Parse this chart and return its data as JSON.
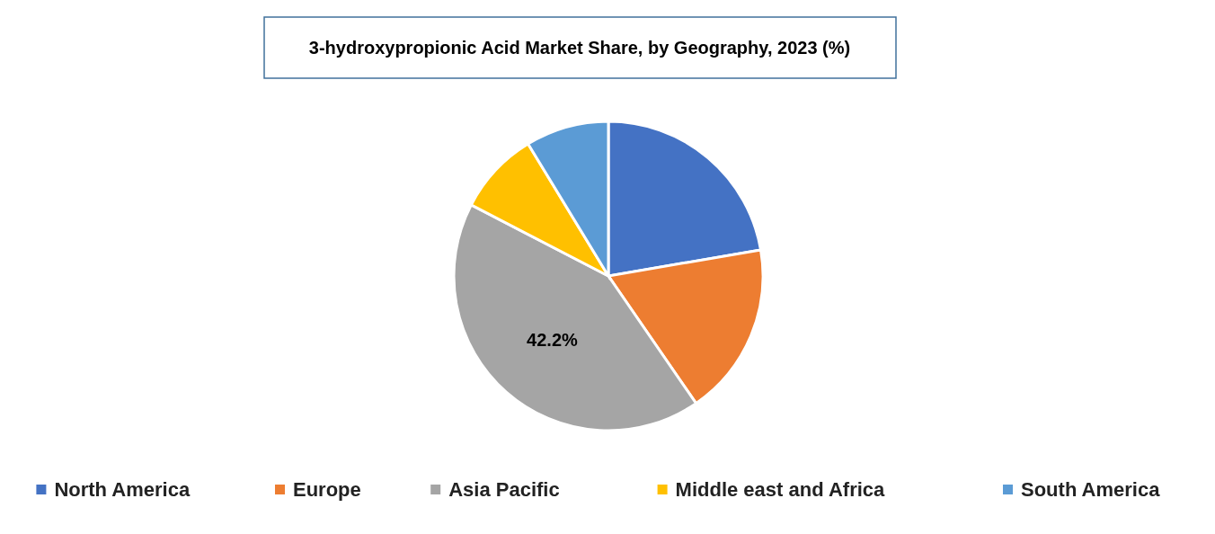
{
  "chart_data": {
    "type": "pie",
    "title": "3-hydroxypropionic Acid Market Share, by Geography, 2023 (%)",
    "categories": [
      "North America",
      "Europe",
      "Asia Pacific",
      "Middle east and Africa",
      "South America"
    ],
    "values": [
      22.3,
      18.1,
      42.2,
      8.7,
      8.7
    ],
    "colors": [
      "#4472c4",
      "#ed7d31",
      "#a5a5a5",
      "#ffc000",
      "#5b9bd5"
    ],
    "value_labels": [
      null,
      null,
      "42.2%",
      null,
      null
    ],
    "legend": "bottom"
  }
}
